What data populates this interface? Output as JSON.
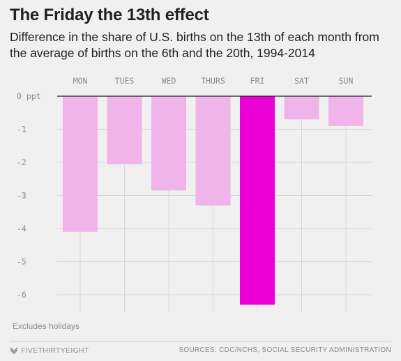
{
  "title": "The Friday the 13th effect",
  "subtitle": "Difference in the share of U.S. births on the 13th of each month from the average of births on the 6th and the 20th, 1994-2014",
  "note": "Excludes holidays",
  "footer": {
    "brand": "FIVETHIRTYEIGHT",
    "brand_icon": "fivethirtyeight-logo-icon",
    "sources": "SOURCES: CDC/NCHS, SOCIAL SECURITY ADMINISTRATION"
  },
  "colors": {
    "background": "#f0f0f0",
    "bar": "#f0b4ea",
    "highlight_bar": "#ec00d8",
    "grid": "#d6d6d6",
    "zero_line": "#222222"
  },
  "chart_data": {
    "type": "bar",
    "categories": [
      "MON",
      "TUES",
      "WED",
      "THURS",
      "FRI",
      "SAT",
      "SUN"
    ],
    "values": [
      -4.1,
      -2.05,
      -2.85,
      -3.3,
      -6.3,
      -0.7,
      -0.9
    ],
    "highlight": "FRI",
    "y_ticks": [
      0,
      -1,
      -2,
      -3,
      -4,
      -5,
      -6
    ],
    "y_tick_labels": [
      "0 ppt",
      "-1",
      "-2",
      "-3",
      "-4",
      "-5",
      "-6"
    ],
    "ylim": [
      -6.5,
      0
    ],
    "x_axis_position": "top",
    "grid": true,
    "title": "The Friday the 13th effect",
    "xlabel": "",
    "ylabel": ""
  }
}
